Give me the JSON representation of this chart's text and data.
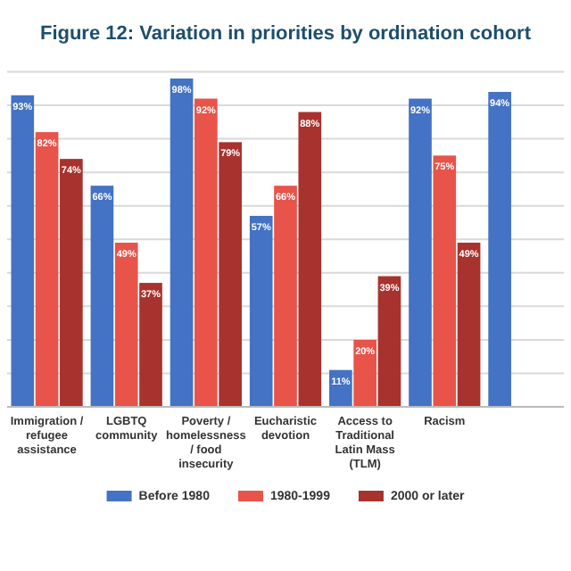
{
  "chart_data": {
    "type": "bar",
    "title": "Figure 12: Variation in priorities by ordination cohort",
    "categories": [
      "Immigration / refugee assistance",
      "LGBTQ community",
      "Poverty / homelessness / food insecurity",
      "Eucharistic devotion",
      "Access to Traditional Latin Mass (TLM)",
      "Racism",
      null
    ],
    "series": [
      {
        "name": "Before 1980",
        "color": "#4472c4",
        "values": [
          93,
          66,
          98,
          57,
          11,
          92,
          94
        ],
        "value_labels": [
          "93%",
          "66%",
          "98%",
          "57%",
          "11%",
          "92%",
          "94%"
        ]
      },
      {
        "name": "1980-1999",
        "color": "#e8534a",
        "values": [
          82,
          49,
          92,
          66,
          20,
          75,
          null
        ],
        "value_labels": [
          "82%",
          "49%",
          "92%",
          "66%",
          "20%",
          "75%",
          null
        ]
      },
      {
        "name": "2000 or later",
        "color": "#a8322d",
        "values": [
          74,
          37,
          79,
          88,
          39,
          49,
          null
        ],
        "value_labels": [
          "74%",
          "37%",
          "79%",
          "88%",
          "39%",
          "49%",
          null
        ]
      }
    ],
    "tick_labels": "x",
    "grid": "y",
    "legend": "bottom"
  }
}
